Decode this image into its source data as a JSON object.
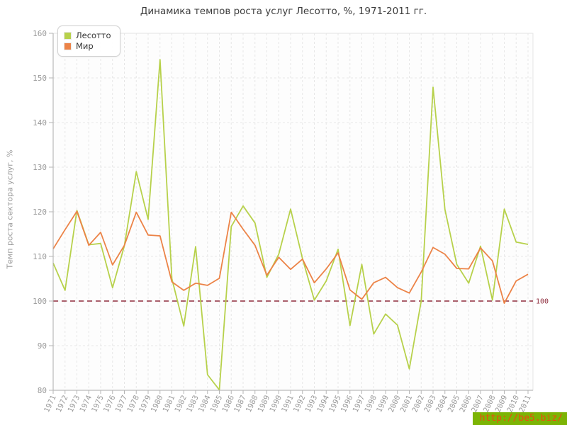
{
  "title": "Динамика темпов роста услуг Лесотто, %, 1971-2011 гг.",
  "y_axis": {
    "label": "Темп роста сектора услуг, %"
  },
  "legend": [
    {
      "label": "Лесотто",
      "color": "#b7d14b"
    },
    {
      "label": "Мир",
      "color": "#ec8347"
    }
  ],
  "reference_line": {
    "value": 100,
    "label": "100",
    "color": "#8e2c3c"
  },
  "watermark": {
    "text": "http://be5.biz/",
    "bg": "#7cb405",
    "fg": "#ee4b0e"
  },
  "chart_data": {
    "type": "line",
    "title": "Динамика темпов роста услуг Лесотто, %, 1971-2011 гг.",
    "xlabel": "",
    "ylabel": "Темп роста сектора услуг, %",
    "ylim": [
      80,
      160
    ],
    "ytick_step": 10,
    "grid": true,
    "legend_position": "top-left",
    "x": [
      1971,
      1972,
      1973,
      1974,
      1975,
      1976,
      1977,
      1978,
      1979,
      1980,
      1981,
      1982,
      1983,
      1984,
      1985,
      1986,
      1987,
      1988,
      1989,
      1990,
      1991,
      1992,
      1993,
      1994,
      1995,
      1996,
      1997,
      1998,
      1999,
      2000,
      2001,
      2002,
      2003,
      2004,
      2005,
      2006,
      2007,
      2008,
      2009,
      2010,
      2011
    ],
    "series": [
      {
        "name": "Лесотто",
        "color": "#b7d14b",
        "values": [
          108.5,
          102.4,
          120.3,
          112.6,
          112.9,
          103.0,
          112.4,
          129.0,
          118.3,
          154.1,
          105.0,
          94.4,
          112.2,
          83.5,
          80.1,
          116.7,
          121.3,
          117.5,
          105.3,
          110.5,
          120.6,
          109.5,
          100.2,
          104.5,
          111.6,
          94.5,
          108.2,
          92.6,
          97.1,
          94.6,
          84.8,
          100.0,
          147.9,
          120.5,
          108.2,
          104.0,
          112.3,
          100.2,
          120.6,
          113.2,
          112.7
        ]
      },
      {
        "name": "Мир",
        "color": "#ec8347",
        "values": [
          111.7,
          116.0,
          120.1,
          112.5,
          115.4,
          108.1,
          112.5,
          119.9,
          114.8,
          114.6,
          104.3,
          102.4,
          104.0,
          103.5,
          105.1,
          119.9,
          116.1,
          112.5,
          105.8,
          109.8,
          107.1,
          109.4,
          104.1,
          107.2,
          110.8,
          102.5,
          100.4,
          104.1,
          105.3,
          103.0,
          101.8,
          106.5,
          112.0,
          110.5,
          107.3,
          107.2,
          111.9,
          109.0,
          99.5,
          104.5,
          106.0
        ]
      }
    ],
    "reference_line": {
      "value": 100,
      "label": "100"
    }
  }
}
